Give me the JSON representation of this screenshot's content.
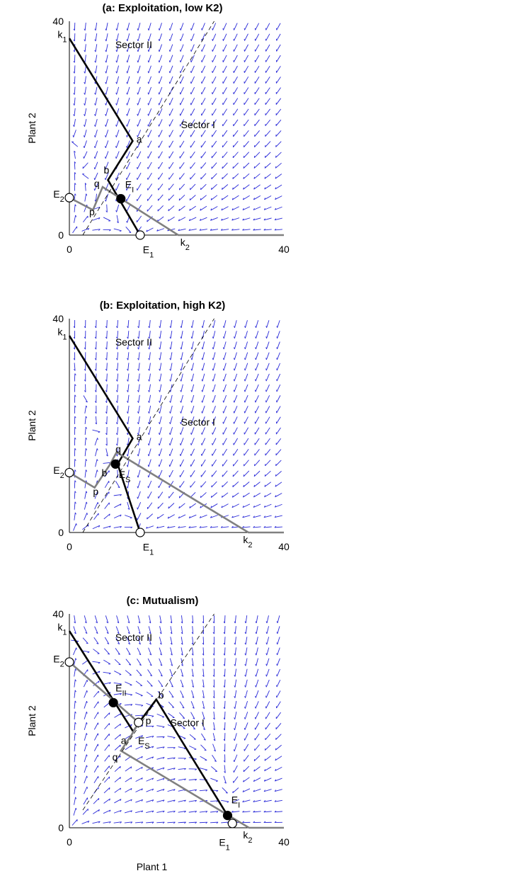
{
  "figure": {
    "panels": [
      {
        "id": "a",
        "title": "(a: Exploitation, low K2)",
        "ylabel": "Plant 2",
        "xlabel": "",
        "x_ticks": [
          "0",
          "40"
        ],
        "y_ticks": [
          "0",
          "40"
        ],
        "sector_labels": [
          {
            "text": "Sector II",
            "x": 12,
            "y": 35
          },
          {
            "text": "Sector I",
            "x": 24,
            "y": 20
          }
        ],
        "point_labels": [
          {
            "text": "k",
            "sub": "1",
            "x": -2.2,
            "y": 36.9
          },
          {
            "text": "a",
            "x": 12.5,
            "y": 17.3
          },
          {
            "text": "b",
            "x": 6.4,
            "y": 11.5
          },
          {
            "text": "q",
            "x": 4.6,
            "y": 9.0
          },
          {
            "text": "p",
            "x": 3.7,
            "y": 3.7
          },
          {
            "text": "E",
            "sub": "2",
            "x": -3.0,
            "y": 7.0
          },
          {
            "text": "E",
            "sub": "I",
            "x": 10.4,
            "y": 8.8
          },
          {
            "text": "E",
            "sub": "1",
            "x": 13.7,
            "y": -3.4
          },
          {
            "text": "k",
            "sub": "2",
            "x": 20.7,
            "y": -2.0
          }
        ]
      },
      {
        "id": "b",
        "title": "(b: Exploitation, high K2)",
        "ylabel": "Plant 2",
        "xlabel": "",
        "x_ticks": [
          "0",
          "40"
        ],
        "y_ticks": [
          "0",
          "40"
        ],
        "sector_labels": [
          {
            "text": "Sector II",
            "x": 12,
            "y": 35
          },
          {
            "text": "Sector I",
            "x": 24,
            "y": 20
          }
        ],
        "point_labels": [
          {
            "text": "k",
            "sub": "1",
            "x": -2.2,
            "y": 36.9
          },
          {
            "text": "a",
            "x": 12.5,
            "y": 17.3
          },
          {
            "text": "q",
            "x": 8.6,
            "y": 15.0
          },
          {
            "text": "b",
            "x": 6.0,
            "y": 10.5
          },
          {
            "text": "p",
            "x": 4.4,
            "y": 7.0
          },
          {
            "text": "E",
            "sub": "2",
            "x": -3.0,
            "y": 11.0
          },
          {
            "text": "E",
            "sub": "S",
            "x": 9.2,
            "y": 10.2
          },
          {
            "text": "E",
            "sub": "1",
            "x": 13.7,
            "y": -3.4
          },
          {
            "text": "k",
            "sub": "2",
            "x": 32.4,
            "y": -2.0
          }
        ]
      },
      {
        "id": "c",
        "title": "(c: Mutualism)",
        "ylabel": "Plant 2",
        "xlabel": "Plant 1",
        "x_ticks": [
          "0",
          "40"
        ],
        "y_ticks": [
          "0",
          "40"
        ],
        "sector_labels": [
          {
            "text": "Sector II",
            "x": 12,
            "y": 35
          },
          {
            "text": "Sector I",
            "x": 22,
            "y": 19
          }
        ],
        "point_labels": [
          {
            "text": "k",
            "sub": "1",
            "x": -2.2,
            "y": 36.9
          },
          {
            "text": "E",
            "sub": "2",
            "x": -3.0,
            "y": 30.9
          },
          {
            "text": "b",
            "x": 16.6,
            "y": 24.2
          },
          {
            "text": "E",
            "sub": "II",
            "x": 8.6,
            "y": 25.5
          },
          {
            "text": "p",
            "x": 14.2,
            "y": 19.4
          },
          {
            "text": "a",
            "x": 9.6,
            "y": 15.7
          },
          {
            "text": "E",
            "sub": "S",
            "x": 12.8,
            "y": 15.6
          },
          {
            "text": "q",
            "x": 8.0,
            "y": 12.6
          },
          {
            "text": "E",
            "sub": "I",
            "x": 30.2,
            "y": 4.6
          },
          {
            "text": "E",
            "sub": "1",
            "x": 27.9,
            "y": -3.4
          },
          {
            "text": "k",
            "sub": "2",
            "x": 32.4,
            "y": -2.0
          }
        ]
      }
    ]
  },
  "chart_data": [
    {
      "type": "line",
      "title": "(a: Exploitation, low K2)",
      "xlabel": "",
      "ylabel": "Plant 2",
      "xlim": [
        0,
        40
      ],
      "ylim": [
        0,
        40
      ],
      "grid": false,
      "vector_field": "blue direction arrows, 20x20 grid",
      "series": [
        {
          "name": "",
          "color": "#000000",
          "x": [
            0,
            11.8,
            7.2,
            13.2
          ],
          "y": [
            36.8,
            17.6,
            10.3,
            0
          ]
        },
        {
          "name": "",
          "color": "#808080",
          "x": [
            0,
            4.4,
            6.2,
            20.3,
            40
          ],
          "y": [
            7.0,
            4.7,
            9.0,
            0,
            0
          ]
        },
        {
          "name": "",
          "color": "#000000",
          "x": [
            2.5,
            27
          ],
          "y": [
            0,
            40
          ],
          "dash": true
        }
      ],
      "points": [
        {
          "name": "E2",
          "x": 0,
          "y": 7.0,
          "filled": false
        },
        {
          "name": "EI",
          "x": 9.6,
          "y": 6.8,
          "filled": true
        },
        {
          "name": "E1",
          "x": 13.2,
          "y": 0,
          "filled": false
        }
      ]
    },
    {
      "type": "line",
      "title": "(b: Exploitation, high K2)",
      "xlabel": "",
      "ylabel": "Plant 2",
      "xlim": [
        0,
        40
      ],
      "ylim": [
        0,
        40
      ],
      "grid": false,
      "vector_field": "blue direction arrows, 20x20 grid",
      "series": [
        {
          "name": "",
          "color": "#000000",
          "x": [
            0,
            11.8,
            9.0,
            13.2
          ],
          "y": [
            36.8,
            17.6,
            12.8,
            0
          ]
        },
        {
          "name": "",
          "color": "#808080",
          "x": [
            0,
            4.7,
            7.5,
            8.8,
            33.4,
            40
          ],
          "y": [
            11.2,
            8.4,
            12.6,
            15.0,
            0,
            0
          ]
        },
        {
          "name": "",
          "color": "#000000",
          "x": [
            2.5,
            27
          ],
          "y": [
            0,
            40
          ],
          "dash": true
        }
      ],
      "points": [
        {
          "name": "E2",
          "x": 0,
          "y": 11.2,
          "filled": false
        },
        {
          "name": "ES",
          "x": 8.6,
          "y": 12.8,
          "filled": true
        },
        {
          "name": "E1",
          "x": 13.2,
          "y": 0,
          "filled": false
        }
      ]
    },
    {
      "type": "line",
      "title": "(c: Mutualism)",
      "xlabel": "Plant 1",
      "ylabel": "Plant 2",
      "xlim": [
        0,
        40
      ],
      "ylim": [
        0,
        40
      ],
      "grid": false,
      "vector_field": "blue direction arrows, 20x20 grid",
      "series": [
        {
          "name": "",
          "color": "#000000",
          "x": [
            0,
            11.9,
            13.0,
            16.2,
            29.5
          ],
          "y": [
            36.8,
            18.0,
            19.7,
            24.0,
            2.3
          ]
        },
        {
          "name": "",
          "color": "#808080",
          "x": [
            0,
            12.9,
            11.5,
            9.6,
            33.5,
            40
          ],
          "y": [
            31.0,
            19.7,
            17.2,
            14.4,
            0,
            0
          ]
        },
        {
          "name": "",
          "color": "#000000",
          "x": [
            2.5,
            27
          ],
          "y": [
            3.3,
            40
          ],
          "dash": true
        }
      ],
      "points": [
        {
          "name": "E2",
          "x": 0,
          "y": 31.0,
          "filled": false
        },
        {
          "name": "EII",
          "x": 8.2,
          "y": 23.4,
          "filled": true
        },
        {
          "name": "p",
          "x": 12.9,
          "y": 19.7,
          "filled": false
        },
        {
          "name": "EI",
          "x": 29.5,
          "y": 2.3,
          "filled": true
        },
        {
          "name": "E1",
          "x": 30.4,
          "y": 0.8,
          "filled": false
        }
      ]
    }
  ]
}
